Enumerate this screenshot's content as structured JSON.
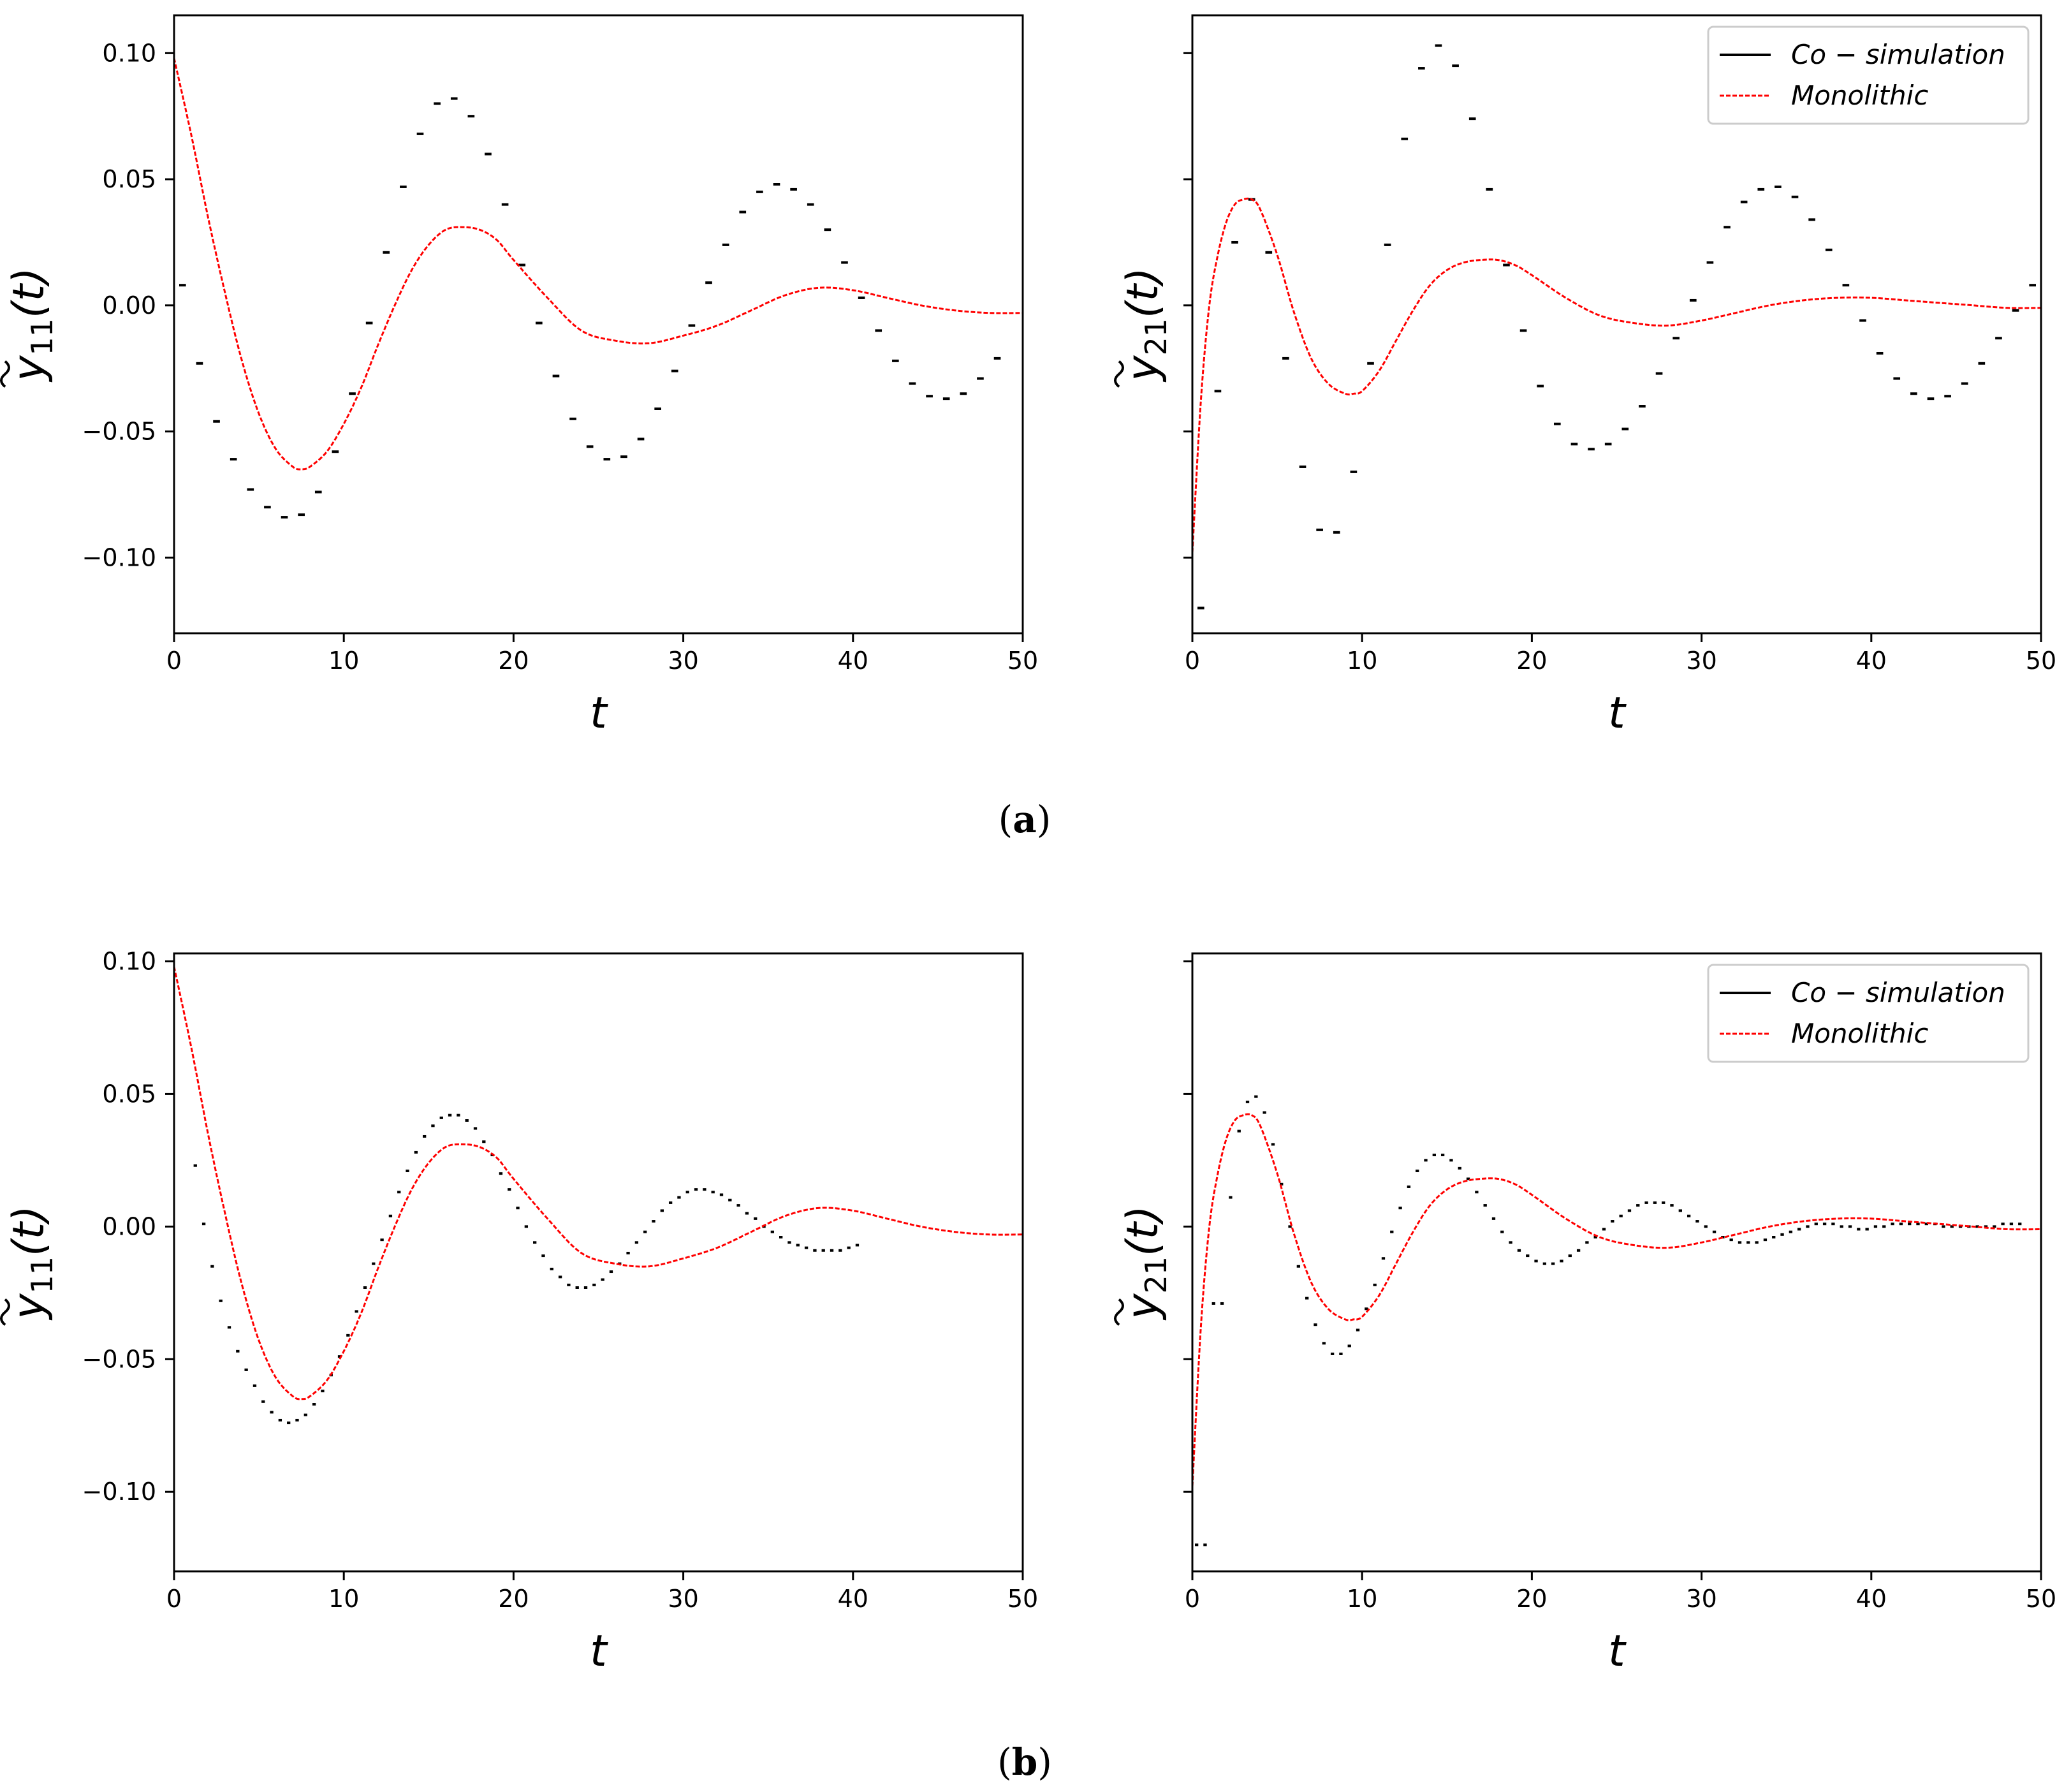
{
  "colors": {
    "cosimulation": "#000000",
    "monolithic": "#ff0000"
  },
  "captions": {
    "a_letter": "a",
    "b_letter": "b"
  },
  "legend": {
    "cosim_label": "Co − simulation",
    "mono_label": "Monolithic"
  },
  "axis_text": {
    "xlabel": "t",
    "ylabel_11_base": "y",
    "ylabel_11_sub": "11",
    "ylabel_21_base": "y",
    "ylabel_21_sub": "21",
    "ylabel_arg": "(t)",
    "x_ticks": [
      "0",
      "10",
      "20",
      "30",
      "40",
      "50"
    ],
    "y_ticks": [
      "0.10",
      "0.05",
      "0.00",
      "−0.05",
      "−0.10"
    ]
  },
  "chart_data": [
    {
      "id": "a-left",
      "panel": "(a)",
      "type": "line",
      "xlabel": "t",
      "ylabel": "ỹ11(t)",
      "xlim": [
        0,
        50
      ],
      "ylim": [
        -0.13,
        0.115
      ],
      "x_ticks": [
        0,
        10,
        20,
        30,
        40,
        50
      ],
      "y_ticks": [
        0.1,
        0.05,
        0.0,
        -0.05,
        -0.1
      ],
      "show_y_tick_labels": true,
      "legend": false,
      "series": [
        {
          "name": "Co-simulation",
          "style": "step",
          "step": 1.0,
          "t0": 0.5,
          "values": [
            0.008,
            -0.023,
            -0.046,
            -0.061,
            -0.073,
            -0.08,
            -0.084,
            -0.083,
            -0.074,
            -0.058,
            -0.035,
            -0.007,
            0.021,
            0.047,
            0.068,
            0.08,
            0.082,
            0.075,
            0.06,
            0.04,
            0.016,
            -0.007,
            -0.028,
            -0.045,
            -0.056,
            -0.061,
            -0.06,
            -0.053,
            -0.041,
            -0.026,
            -0.008,
            0.009,
            0.024,
            0.037,
            0.045,
            0.048,
            0.046,
            0.04,
            0.03,
            0.017,
            0.003,
            -0.01,
            -0.022,
            -0.031,
            -0.036,
            -0.037,
            -0.035,
            -0.029,
            -0.021
          ]
        },
        {
          "name": "Monolithic",
          "style": "dashed",
          "x": [
            0,
            1,
            2,
            3,
            4,
            5,
            6,
            7,
            7.5,
            8,
            9,
            10,
            11,
            12,
            13,
            14,
            15,
            16,
            17,
            18,
            19,
            20,
            22,
            24,
            26,
            28,
            30,
            32,
            34,
            36,
            38,
            40,
            42,
            44,
            46,
            48,
            50
          ],
          "values": [
            0.098,
            0.068,
            0.035,
            0.005,
            -0.022,
            -0.043,
            -0.057,
            -0.064,
            -0.065,
            -0.064,
            -0.058,
            -0.047,
            -0.033,
            -0.016,
            0.0,
            0.014,
            0.024,
            0.03,
            0.031,
            0.03,
            0.026,
            0.018,
            0.003,
            -0.01,
            -0.014,
            -0.015,
            -0.012,
            -0.008,
            -0.002,
            0.004,
            0.007,
            0.006,
            0.003,
            0.0,
            -0.002,
            -0.003,
            -0.003
          ]
        }
      ]
    },
    {
      "id": "a-right",
      "panel": "(a)",
      "type": "line",
      "xlabel": "t",
      "ylabel": "ỹ21(t)",
      "xlim": [
        0,
        50
      ],
      "ylim": [
        -0.13,
        0.115
      ],
      "x_ticks": [
        0,
        10,
        20,
        30,
        40,
        50
      ],
      "y_ticks": [
        0.1,
        0.05,
        0.0,
        -0.05,
        -0.1
      ],
      "show_y_tick_labels": false,
      "legend": true,
      "series": [
        {
          "name": "Co-simulation",
          "style": "step",
          "step": 1.0,
          "t0": 0.5,
          "values": [
            -0.12,
            -0.034,
            0.025,
            0.042,
            0.021,
            -0.021,
            -0.064,
            -0.089,
            -0.09,
            -0.066,
            -0.023,
            0.024,
            0.066,
            0.094,
            0.103,
            0.095,
            0.074,
            0.046,
            0.016,
            -0.01,
            -0.032,
            -0.047,
            -0.055,
            -0.057,
            -0.055,
            -0.049,
            -0.04,
            -0.027,
            -0.013,
            0.002,
            0.017,
            0.031,
            0.041,
            0.046,
            0.047,
            0.043,
            0.034,
            0.022,
            0.008,
            -0.006,
            -0.019,
            -0.029,
            -0.035,
            -0.037,
            -0.036,
            -0.031,
            -0.023,
            -0.013,
            -0.002,
            0.008
          ]
        },
        {
          "name": "Monolithic",
          "style": "dashed",
          "x": [
            0,
            0.5,
            1,
            1.5,
            2,
            2.5,
            3,
            3.5,
            4,
            5,
            6,
            7,
            8,
            9,
            9.5,
            10,
            11,
            12,
            13,
            14,
            15,
            16,
            17,
            18,
            19,
            20,
            22,
            24,
            26,
            28,
            30,
            32,
            34,
            36,
            38,
            40,
            42,
            44,
            46,
            48,
            50
          ],
          "values": [
            -0.098,
            -0.038,
            0.0,
            0.02,
            0.033,
            0.04,
            0.042,
            0.042,
            0.038,
            0.02,
            -0.003,
            -0.021,
            -0.031,
            -0.035,
            -0.035,
            -0.034,
            -0.026,
            -0.014,
            -0.002,
            0.008,
            0.014,
            0.017,
            0.018,
            0.018,
            0.016,
            0.012,
            0.003,
            -0.004,
            -0.007,
            -0.008,
            -0.006,
            -0.003,
            0.0,
            0.002,
            0.003,
            0.003,
            0.002,
            0.001,
            0.0,
            -0.001,
            -0.001
          ]
        }
      ]
    },
    {
      "id": "b-left",
      "panel": "(b)",
      "type": "line",
      "xlabel": "t",
      "ylabel": "ỹ11(t)",
      "xlim": [
        0,
        50
      ],
      "ylim": [
        -0.13,
        0.103
      ],
      "x_ticks": [
        0,
        10,
        20,
        30,
        40,
        50
      ],
      "y_ticks": [
        0.1,
        0.05,
        0.0,
        -0.05,
        -0.1
      ],
      "show_y_tick_labels": true,
      "legend": false,
      "series": [
        {
          "name": "Co-simulation",
          "style": "step",
          "step": 0.5,
          "t0": 1.25,
          "values": [
            0.023,
            0.001,
            -0.015,
            -0.028,
            -0.038,
            -0.047,
            -0.054,
            -0.06,
            -0.066,
            -0.07,
            -0.073,
            -0.074,
            -0.073,
            -0.071,
            -0.067,
            -0.062,
            -0.056,
            -0.049,
            -0.041,
            -0.032,
            -0.023,
            -0.014,
            -0.005,
            0.004,
            0.013,
            0.021,
            0.028,
            0.034,
            0.038,
            0.041,
            0.042,
            0.042,
            0.04,
            0.037,
            0.032,
            0.027,
            0.02,
            0.014,
            0.007,
            0.0,
            -0.006,
            -0.011,
            -0.016,
            -0.019,
            -0.022,
            -0.023,
            -0.023,
            -0.022,
            -0.02,
            -0.017,
            -0.014,
            -0.01,
            -0.006,
            -0.002,
            0.002,
            0.006,
            0.009,
            0.011,
            0.013,
            0.014,
            0.014,
            0.013,
            0.012,
            0.01,
            0.008,
            0.005,
            0.003,
            0.0,
            -0.002,
            -0.004,
            -0.006,
            -0.007,
            -0.008,
            -0.009,
            -0.009,
            -0.009,
            -0.009,
            -0.008,
            -0.007
          ]
        },
        {
          "name": "Monolithic",
          "style": "dashed",
          "x": [
            0,
            1,
            2,
            3,
            4,
            5,
            6,
            7,
            7.5,
            8,
            9,
            10,
            11,
            12,
            13,
            14,
            15,
            16,
            17,
            18,
            19,
            20,
            22,
            24,
            26,
            28,
            30,
            32,
            34,
            36,
            38,
            40,
            42,
            44,
            46,
            48,
            50
          ],
          "values": [
            0.098,
            0.068,
            0.035,
            0.005,
            -0.022,
            -0.043,
            -0.057,
            -0.064,
            -0.065,
            -0.064,
            -0.058,
            -0.047,
            -0.033,
            -0.016,
            0.0,
            0.014,
            0.024,
            0.03,
            0.031,
            0.03,
            0.026,
            0.018,
            0.003,
            -0.01,
            -0.014,
            -0.015,
            -0.012,
            -0.008,
            -0.002,
            0.004,
            0.007,
            0.006,
            0.003,
            0.0,
            -0.002,
            -0.003,
            -0.003
          ]
        }
      ]
    },
    {
      "id": "b-right",
      "panel": "(b)",
      "type": "line",
      "xlabel": "t",
      "ylabel": "ỹ21(t)",
      "xlim": [
        0,
        50
      ],
      "ylim": [
        -0.13,
        0.103
      ],
      "x_ticks": [
        0,
        10,
        20,
        30,
        40,
        50
      ],
      "y_ticks": [
        0.1,
        0.05,
        0.0,
        -0.05,
        -0.1
      ],
      "show_y_tick_labels": false,
      "legend": true,
      "series": [
        {
          "name": "Co-simulation",
          "style": "step",
          "step": 0.5,
          "t0": 0.25,
          "values": [
            -0.12,
            -0.12,
            -0.029,
            -0.029,
            0.011,
            0.036,
            0.047,
            0.049,
            0.043,
            0.031,
            0.016,
            0.0,
            -0.015,
            -0.027,
            -0.037,
            -0.044,
            -0.048,
            -0.048,
            -0.045,
            -0.039,
            -0.031,
            -0.022,
            -0.012,
            -0.002,
            0.007,
            0.015,
            0.021,
            0.025,
            0.027,
            0.027,
            0.025,
            0.022,
            0.018,
            0.013,
            0.008,
            0.003,
            -0.002,
            -0.006,
            -0.009,
            -0.011,
            -0.013,
            -0.014,
            -0.014,
            -0.013,
            -0.011,
            -0.009,
            -0.006,
            -0.004,
            -0.001,
            0.002,
            0.004,
            0.006,
            0.008,
            0.009,
            0.009,
            0.009,
            0.008,
            0.006,
            0.004,
            0.002,
            0.0,
            -0.002,
            -0.004,
            -0.005,
            -0.006,
            -0.006,
            -0.006,
            -0.005,
            -0.004,
            -0.003,
            -0.002,
            -0.001,
            0.0,
            0.001,
            0.001,
            0.001,
            0.0,
            0.0,
            -0.001,
            -0.001,
            0.0,
            0.0,
            0.001,
            0.001,
            0.001,
            0.001,
            0.001,
            0.001,
            0.0,
            0.0,
            0.0,
            0.0,
            0.0,
            0.0,
            0.0,
            0.001,
            0.001,
            0.001
          ]
        },
        {
          "name": "Monolithic",
          "style": "dashed",
          "x": [
            0,
            0.5,
            1,
            1.5,
            2,
            2.5,
            3,
            3.5,
            4,
            5,
            6,
            7,
            8,
            9,
            9.5,
            10,
            11,
            12,
            13,
            14,
            15,
            16,
            17,
            18,
            19,
            20,
            22,
            24,
            26,
            28,
            30,
            32,
            34,
            36,
            38,
            40,
            42,
            44,
            46,
            48,
            50
          ],
          "values": [
            -0.098,
            -0.038,
            0.0,
            0.02,
            0.033,
            0.04,
            0.042,
            0.042,
            0.038,
            0.02,
            -0.003,
            -0.021,
            -0.031,
            -0.035,
            -0.035,
            -0.034,
            -0.026,
            -0.014,
            -0.002,
            0.008,
            0.014,
            0.017,
            0.018,
            0.018,
            0.016,
            0.012,
            0.003,
            -0.004,
            -0.007,
            -0.008,
            -0.006,
            -0.003,
            0.0,
            0.002,
            0.003,
            0.003,
            0.002,
            0.001,
            0.0,
            -0.001,
            -0.001
          ]
        }
      ]
    }
  ]
}
